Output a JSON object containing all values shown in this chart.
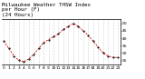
{
  "title": "Milwaukee Weather THSW Index\nper Hour (F)\n(24 Hours)",
  "x": [
    0,
    1,
    2,
    3,
    4,
    5,
    6,
    7,
    8,
    9,
    10,
    11,
    12,
    13,
    14,
    15,
    16,
    17,
    18,
    19,
    20,
    21,
    22,
    23
  ],
  "y": [
    38,
    33,
    28,
    25,
    24,
    26,
    29,
    33,
    37,
    39,
    41,
    43,
    46,
    48,
    50,
    48,
    45,
    42,
    38,
    34,
    30,
    28,
    27,
    27
  ],
  "line_color": "#dd0000",
  "marker_color": "#111111",
  "bg_color": "#ffffff",
  "plot_bg": "#ffffff",
  "ylim": [
    22,
    53
  ],
  "yticks": [
    25,
    30,
    35,
    40,
    45,
    50
  ],
  "ytick_labels": [
    "25",
    "30",
    "35",
    "40",
    "45",
    "50"
  ],
  "x_ticks": [
    0,
    1,
    2,
    3,
    4,
    5,
    6,
    7,
    8,
    9,
    10,
    11,
    12,
    13,
    14,
    15,
    16,
    17,
    18,
    19,
    20,
    21,
    22,
    23
  ],
  "xtick_labels": [
    "0",
    "1",
    "2",
    "3",
    "4",
    "5",
    "6",
    "7",
    "8",
    "9",
    "10",
    "11",
    "12",
    "13",
    "14",
    "15",
    "16",
    "17",
    "18",
    "19",
    "20",
    "21",
    "22",
    "23"
  ],
  "grid_color": "#888888",
  "title_fontsize": 4.2,
  "tick_fontsize": 3.2
}
